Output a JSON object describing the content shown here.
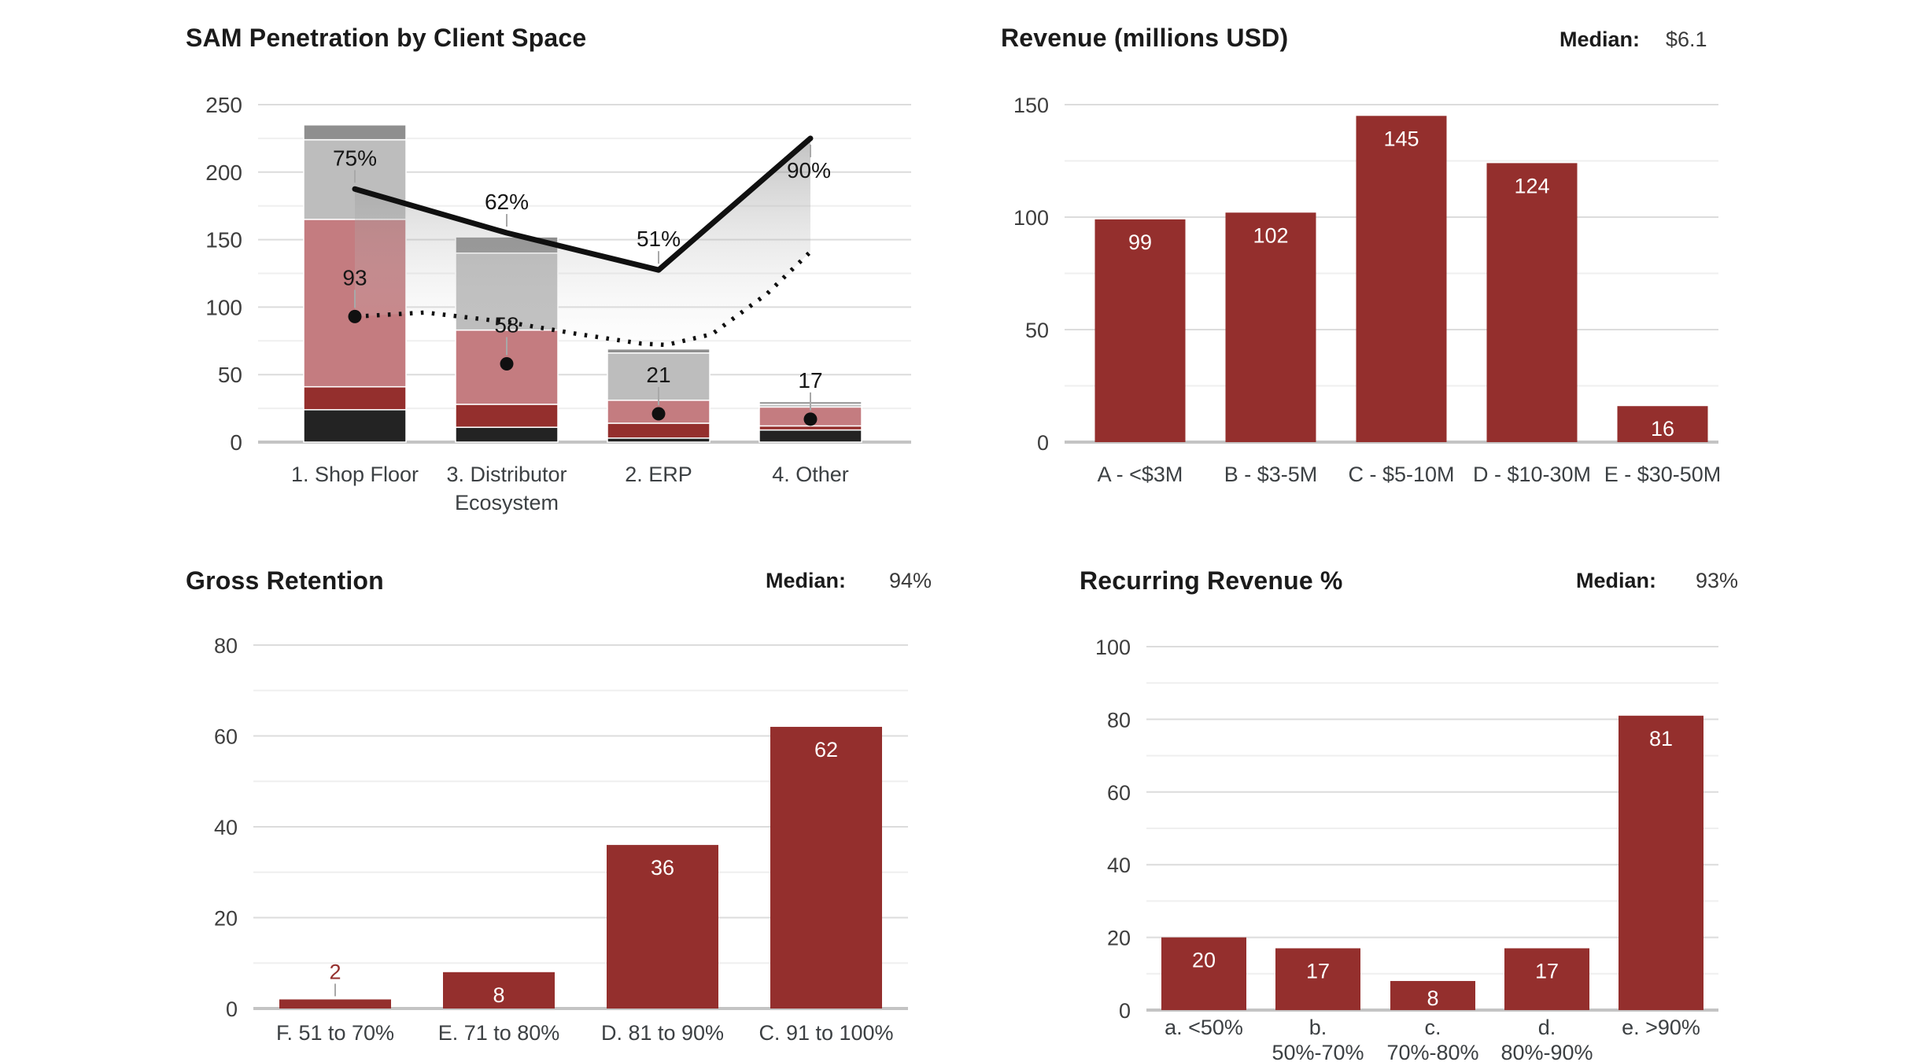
{
  "page": {
    "background": "#ffffff"
  },
  "style": {
    "bar_red": "#942F2D",
    "gridline_major": "#dcdcdc",
    "gridline_minor": "#efefef",
    "axis_baseline": "#c4c4c4",
    "tick_label_color": "#3e3e3e",
    "category_label_color": "#3c4043",
    "annotation_color": "#161616",
    "leader_line_color": "#a8a8a8"
  },
  "chart_data": [
    {
      "id": "sam-penetration-by-client-space",
      "type": "stacked-bar-combo",
      "title": "SAM Penetration by Client Space",
      "categories": [
        "1. Shop Floor",
        "3. Distributor\nEcosystem",
        "2. ERP",
        "4. Other"
      ],
      "y_axis": {
        "min": 0,
        "max": 250,
        "ticks": [
          0,
          50,
          100,
          150,
          200,
          250
        ],
        "minor_step": 25,
        "grid": true
      },
      "stack_series": [
        {
          "name": "segment-black",
          "color": "#232323",
          "values": [
            24,
            11,
            3,
            9
          ]
        },
        {
          "name": "segment-dark-red",
          "color": "#942F2D",
          "values": [
            17,
            17,
            11,
            3
          ]
        },
        {
          "name": "segment-pink",
          "color": "#C47C80",
          "values": [
            124,
            55,
            17,
            14
          ]
        },
        {
          "name": "segment-light-gray",
          "color": "#BDBDBD",
          "values": [
            59,
            57,
            35,
            2
          ]
        },
        {
          "name": "segment-dark-gray",
          "color": "#8F8F8F",
          "values": [
            11,
            12,
            3,
            2
          ]
        }
      ],
      "solid_line": {
        "color": "#101010",
        "secondary_axis_max": 100,
        "values": [
          75,
          62,
          51,
          90
        ],
        "labels": [
          "75%",
          "62%",
          "51%",
          "90%"
        ]
      },
      "dotted_line": {
        "color": "#101010",
        "values": [
          93,
          96,
          89,
          80,
          73,
          72,
          80,
          110,
          141
        ]
      },
      "point_markers": {
        "color": "#101010",
        "values": [
          93,
          58,
          21,
          17
        ],
        "labels": [
          "93",
          "58",
          "21",
          "17"
        ]
      },
      "band_fill": {
        "top_color": "rgba(120,120,120,0.45)",
        "bottom_color": "rgba(235,235,235,0.08)"
      }
    },
    {
      "id": "revenue-millions-usd",
      "type": "bar",
      "title": "Revenue (millions USD)",
      "median_label": "Median:",
      "median_value": "$6.1",
      "bar_color": "#942F2D",
      "value_label_color": "#ffffff",
      "categories": [
        "A - <$3M",
        "B - $3-5M",
        "C - $5-10M",
        "D - $10-30M",
        "E - $30-50M"
      ],
      "values": [
        99,
        102,
        145,
        124,
        16
      ],
      "y_axis": {
        "min": 0,
        "max": 150,
        "ticks": [
          0,
          50,
          100,
          150
        ],
        "minor_step": 25,
        "grid": true
      }
    },
    {
      "id": "gross-retention",
      "type": "bar",
      "title": "Gross Retention",
      "median_label": "Median:",
      "median_value": "94%",
      "bar_color": "#942F2D",
      "value_label_color": "#ffffff",
      "categories": [
        "F. 51 to 70%",
        "E. 71 to 80%",
        "D. 81 to 90%",
        "C. 91 to 100%"
      ],
      "values": [
        2,
        8,
        36,
        62
      ],
      "y_axis": {
        "min": 0,
        "max": 80,
        "ticks": [
          0,
          20,
          40,
          60,
          80
        ],
        "minor_step": 10,
        "grid": true
      }
    },
    {
      "id": "recurring-revenue-pct",
      "type": "bar",
      "title": "Recurring Revenue %",
      "median_label": "Median:",
      "median_value": "93%",
      "bar_color": "#942F2D",
      "value_label_color": "#ffffff",
      "categories": [
        "a. <50%",
        "b.\n50%-70%",
        "c.\n70%-80%",
        "d.\n80%-90%",
        "e. >90%"
      ],
      "values": [
        20,
        17,
        8,
        17,
        81
      ],
      "y_axis": {
        "min": 0,
        "max": 100,
        "ticks": [
          0,
          20,
          40,
          60,
          80,
          100
        ],
        "minor_step": 10,
        "grid": true
      }
    }
  ]
}
